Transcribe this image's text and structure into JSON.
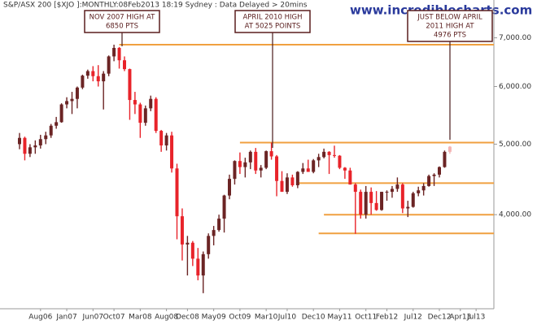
{
  "chart_data": {
    "type": "candlestick",
    "title": "S&P/ASX 200 [$XJO ]:MONTHLY:08Feb2013 18:19 Sydney : Data Delayed > 20mins",
    "watermark": "www.incrediblecharts.com",
    "categories": [
      null,
      null,
      null,
      null,
      "Aug06",
      null,
      null,
      null,
      null,
      "Jan07",
      null,
      null,
      null,
      null,
      "Jun07",
      null,
      null,
      null,
      "Oct07",
      null,
      null,
      null,
      null,
      "Mar08",
      null,
      null,
      null,
      null,
      "Aug08",
      null,
      null,
      null,
      "Dec08",
      null,
      null,
      null,
      null,
      "May09",
      null,
      null,
      null,
      null,
      "Oct09",
      null,
      null,
      null,
      null,
      "Mar10",
      null,
      null,
      null,
      "Jul10",
      null,
      null,
      null,
      null,
      "Dec10",
      null,
      null,
      null,
      null,
      "May11",
      null,
      null,
      null,
      null,
      "Oct11",
      null,
      null,
      null,
      "Feb12",
      null,
      null,
      null,
      null,
      "Jul12",
      null,
      null,
      null,
      null,
      "Dec12",
      null,
      null,
      null,
      "Apr13",
      null,
      null,
      "Jul13"
    ],
    "open": [
      5000,
      5100,
      4850,
      4950,
      4980,
      5080,
      5140,
      5300,
      5360,
      5670,
      5730,
      5770,
      5980,
      6210,
      6300,
      6200,
      6100,
      6250,
      6600,
      6780,
      6520,
      6340,
      5750,
      5670,
      5350,
      5600,
      5770,
      5215,
      4980,
      5140,
      4630,
      3980,
      3640,
      3660,
      3480,
      3300,
      3530,
      3740,
      3810,
      3950,
      4250,
      4480,
      4740,
      4650,
      4720,
      4880,
      4600,
      4640,
      4890,
      4810,
      4450,
      4300,
      4500,
      4390,
      4580,
      4630,
      4580,
      4750,
      4800,
      4880,
      4830,
      4820,
      4640,
      4600,
      4400,
      4300,
      4000,
      4300,
      4150,
      4060,
      4300,
      4300,
      4340,
      4400,
      4080,
      4100,
      4280,
      4320,
      4380,
      4520,
      4540,
      4650,
      4880,
      null,
      null,
      null,
      null,
      null
    ],
    "high": [
      5180,
      5120,
      5000,
      5060,
      5150,
      5200,
      5330,
      5450,
      5690,
      5800,
      5900,
      6000,
      6230,
      6330,
      6400,
      6420,
      6300,
      6620,
      6850,
      6800,
      6600,
      6350,
      5900,
      5700,
      5650,
      5830,
      5800,
      5230,
      5180,
      5200,
      4700,
      4080,
      3740,
      3680,
      3600,
      3560,
      3770,
      3860,
      4000,
      4260,
      4540,
      4750,
      4870,
      4790,
      4900,
      4940,
      4680,
      4900,
      5025,
      4830,
      4590,
      4560,
      4540,
      4590,
      4710,
      4760,
      4770,
      4850,
      4930,
      4890,
      4976,
      4830,
      4650,
      4640,
      4420,
      4330,
      4380,
      4360,
      4310,
      4300,
      4320,
      4380,
      4500,
      4420,
      4180,
      4300,
      4370,
      4420,
      4540,
      4560,
      4660,
      4900,
      4970,
      null,
      null,
      null,
      null,
      null
    ],
    "low": [
      4920,
      4750,
      4800,
      4850,
      4930,
      5000,
      5100,
      5250,
      5350,
      5600,
      5500,
      5600,
      5950,
      6150,
      6100,
      6000,
      5580,
      6200,
      6500,
      6350,
      6300,
      5400,
      5500,
      5100,
      5300,
      5550,
      5180,
      4880,
      4900,
      4570,
      3700,
      3460,
      3300,
      3400,
      3250,
      3120,
      3480,
      3630,
      3790,
      3780,
      4200,
      4400,
      4550,
      4500,
      4620,
      4550,
      4500,
      4620,
      4760,
      4240,
      4300,
      4270,
      4370,
      4350,
      4550,
      4580,
      4560,
      4650,
      4780,
      4550,
      4790,
      4620,
      4480,
      4400,
      3765,
      3950,
      3950,
      4000,
      4050,
      4050,
      4180,
      4220,
      4300,
      4020,
      3970,
      4090,
      4240,
      4250,
      4370,
      4380,
      4500,
      4640,
      4850,
      null,
      null,
      null,
      null,
      null
    ],
    "close": [
      5100,
      4850,
      4950,
      4980,
      5080,
      5140,
      5300,
      5360,
      5670,
      5730,
      5770,
      5980,
      6210,
      6300,
      6200,
      6100,
      6250,
      6600,
      6780,
      6520,
      6340,
      5750,
      5670,
      5350,
      5600,
      5770,
      5215,
      4980,
      5140,
      4630,
      3980,
      3640,
      3660,
      3480,
      3300,
      3530,
      3740,
      3810,
      3950,
      4250,
      4480,
      4740,
      4650,
      4720,
      4880,
      4600,
      4640,
      4890,
      4810,
      4450,
      4300,
      4500,
      4390,
      4580,
      4630,
      4580,
      4750,
      4800,
      4880,
      4830,
      4820,
      4640,
      4600,
      4400,
      4300,
      4000,
      4300,
      4150,
      4060,
      4300,
      4300,
      4340,
      4400,
      4080,
      4100,
      4280,
      4320,
      4380,
      4520,
      4540,
      4650,
      4880,
      4960,
      null,
      null,
      null,
      null,
      null
    ],
    "up_color": "#6b2424",
    "down_color": "#e8232a",
    "current_color": "#f4b4b4",
    "log_scale": true,
    "ylim": [
      2970,
      7890
    ],
    "yticks": [
      {
        "value": 4000,
        "label": "4,000.00"
      },
      {
        "value": 5000,
        "label": "5,000.00"
      },
      {
        "value": 6000,
        "label": "6,000.00"
      },
      {
        "value": 7000,
        "label": "7,000.00"
      }
    ],
    "hlines_color": "#f0a040",
    "hlines": [
      {
        "value": 6850,
        "start": 19
      },
      {
        "value": 5025,
        "start": 42
      },
      {
        "value": 4420,
        "start": 53
      },
      {
        "value": 4000,
        "start": 58
      },
      {
        "value": 3770,
        "start": 57
      }
    ],
    "annotations": [
      {
        "lines": [
          "NOV 2007 HIGH AT",
          "6850 PTS"
        ]
      },
      {
        "lines": [
          "APRIL 2010 HIGH",
          "AT 5025 POINTS"
        ]
      },
      {
        "lines": [
          "JUST BELOW APRIL",
          "2011 HIGH AT",
          "4976 PTS"
        ]
      }
    ]
  }
}
